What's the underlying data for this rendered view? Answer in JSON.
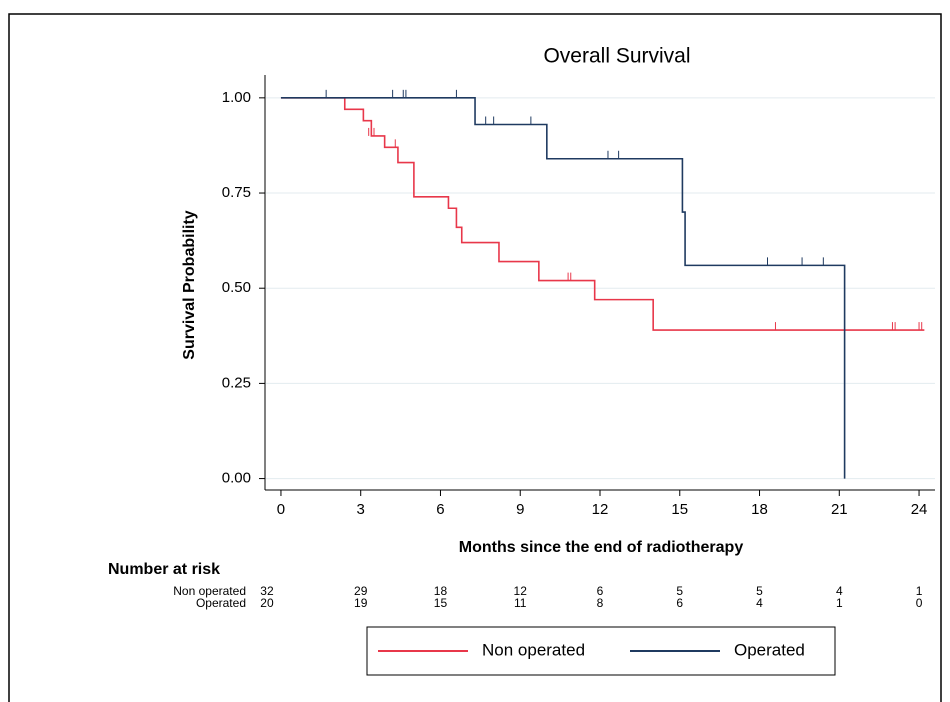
{
  "chart_data": {
    "type": "line",
    "step": "post",
    "title": "Overall Survival",
    "x_label": "Months since the end of radiotherapy",
    "y_label": "Survival Probability",
    "xlim": [
      -0.6,
      24.6
    ],
    "ylim": [
      -0.03,
      1.06
    ],
    "xticks": [
      0,
      3,
      6,
      9,
      12,
      15,
      18,
      21,
      24
    ],
    "yticks": [
      {
        "value": 0,
        "label": "0.00"
      },
      {
        "value": 0.25,
        "label": "0.25"
      },
      {
        "value": 0.5,
        "label": "0.50"
      },
      {
        "value": 0.75,
        "label": "0.75"
      },
      {
        "value": 1,
        "label": "1.00"
      }
    ],
    "grid": true,
    "legend": "bottom",
    "series": [
      {
        "name": "Non operated",
        "color": "#e8374a",
        "x": [
          0,
          2.4,
          3.1,
          3.4,
          3.9,
          4.4,
          5.0,
          6.3,
          6.6,
          6.8,
          8.2,
          9.7,
          11.8,
          14.0,
          24.2
        ],
        "values": [
          1.0,
          0.97,
          0.94,
          0.9,
          0.87,
          0.83,
          0.74,
          0.71,
          0.66,
          0.62,
          0.57,
          0.52,
          0.47,
          0.39,
          0.39
        ],
        "censored": {
          "x": [
            3.3,
            3.5,
            4.3,
            10.8,
            10.9,
            11.8,
            18.6,
            23.0,
            23.1,
            24.0,
            24.1
          ],
          "values": [
            0.9,
            0.9,
            0.87,
            0.52,
            0.52,
            0.47,
            0.39,
            0.39,
            0.39,
            0.39,
            0.39
          ]
        }
      },
      {
        "name": "Operated",
        "color": "#1f3a60",
        "x": [
          0,
          7.3,
          10.0,
          15.1,
          15.2,
          21.2
        ],
        "values": [
          1.0,
          0.93,
          0.84,
          0.7,
          0.56,
          0.0
        ],
        "censored": {
          "x": [
            1.7,
            4.2,
            4.6,
            4.7,
            6.6,
            7.7,
            8.0,
            9.4,
            12.3,
            12.7,
            18.3,
            19.6,
            20.4
          ],
          "values": [
            1,
            1,
            1,
            1,
            1,
            0.93,
            0.93,
            0.93,
            0.84,
            0.84,
            0.56,
            0.56,
            0.56
          ]
        }
      }
    ],
    "risk_table": {
      "title": "Number at risk",
      "rows": [
        {
          "name": "Non operated",
          "values": [
            32,
            29,
            18,
            12,
            6,
            5,
            5,
            4,
            1
          ]
        },
        {
          "name": "Operated",
          "values": [
            20,
            19,
            15,
            11,
            8,
            6,
            4,
            1,
            0
          ]
        }
      ]
    }
  }
}
